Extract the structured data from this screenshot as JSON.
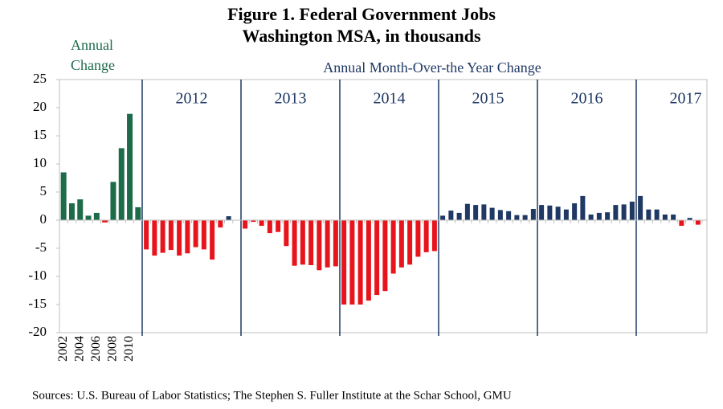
{
  "chart_data": {
    "type": "bar",
    "title": "Figure 1. Federal Government Jobs",
    "subtitle": "Washington MSA, in thousands",
    "source": "Sources: U.S. Bureau of Labor Statistics;  The Stephen S. Fuller Institute at the Schar School, GMU",
    "ylim": [
      -20,
      25
    ],
    "yticks": [
      -20,
      -15,
      -10,
      -5,
      0,
      5,
      10,
      15,
      20,
      25
    ],
    "series": [
      {
        "name": "Annual Change",
        "color": "#1e6b4a",
        "negative_color": "#e8141b",
        "categories": [
          "2002",
          null,
          "2004",
          null,
          "2006",
          null,
          "2008",
          null,
          "2010",
          null
        ],
        "values": [
          8.5,
          3.0,
          3.7,
          0.8,
          1.3,
          -0.4,
          6.8,
          12.8,
          18.9,
          2.3
        ]
      },
      {
        "name": "Annual Month-Over-the Year Change",
        "color": "#1f3864",
        "negative_color": "#e8141b",
        "groups": [
          {
            "label": "2012",
            "values": [
              -5.2,
              -6.3,
              -5.8,
              -5.3,
              -6.3,
              -5.9,
              -4.8,
              -5.2,
              -7.0,
              -1.3,
              0.7,
              0.0
            ]
          },
          {
            "label": "2013",
            "values": [
              -1.5,
              -0.3,
              -1.0,
              -2.3,
              -2.1,
              -4.6,
              -8.1,
              -7.9,
              -8.0,
              -8.9,
              -8.4,
              -8.2
            ]
          },
          {
            "label": "2014",
            "values": [
              -15.0,
              -15.0,
              -15.0,
              -14.3,
              -13.3,
              -12.6,
              -9.5,
              -8.4,
              -7.9,
              -6.5,
              -5.7,
              -5.5
            ]
          },
          {
            "label": "2015",
            "values": [
              0.8,
              1.7,
              1.3,
              2.9,
              2.7,
              2.8,
              2.2,
              1.8,
              1.6,
              0.9,
              0.9,
              2.0
            ]
          },
          {
            "label": "2016",
            "values": [
              2.7,
              2.6,
              2.4,
              1.9,
              3.0,
              4.3,
              1.0,
              1.3,
              1.4,
              2.7,
              2.8,
              3.3
            ]
          },
          {
            "label": "2017",
            "values": [
              4.3,
              1.9,
              1.9,
              1.0,
              1.0,
              -1.0,
              0.4,
              -0.8
            ]
          }
        ]
      }
    ]
  }
}
